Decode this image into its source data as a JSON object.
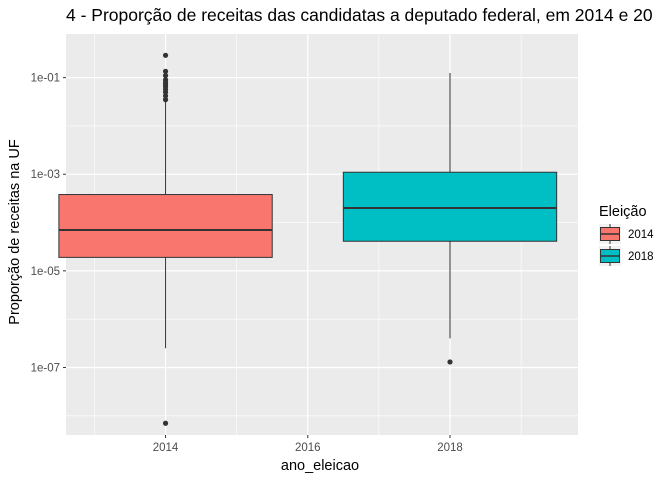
{
  "chart_data": {
    "type": "boxplot",
    "title": "4  - Proporção de receitas das candidatas a deputado federal, em 2014 e 20",
    "xlabel": "ano_eleicao",
    "ylabel": "Proporção de receitas na UF",
    "x_scale": "linear",
    "y_scale": "log10",
    "xlim": [
      2012.6,
      2019.8
    ],
    "ylim": [
      4e-09,
      0.8
    ],
    "x_ticks": [
      2014,
      2016,
      2018
    ],
    "x_tick_labels": [
      "2014",
      "2016",
      "2018"
    ],
    "y_ticks": [
      1e-07,
      1e-05,
      0.001,
      0.1
    ],
    "y_tick_labels": [
      "1e-07",
      "1e-05",
      "1e-03",
      "1e-01"
    ],
    "grid": true,
    "legend": {
      "title": "Eleição",
      "placement": "right",
      "entries": [
        "2014",
        "2018"
      ]
    },
    "series": [
      {
        "name": "2014",
        "x": 2014,
        "color": "#f8766d",
        "whisker_low": 2.5e-07,
        "q1": 1.9e-05,
        "median": 7e-05,
        "q3": 0.00038,
        "whisker_high": 0.032,
        "outliers": [
          7e-09,
          0.035,
          0.042,
          0.05,
          0.057,
          0.065,
          0.072,
          0.08,
          0.09,
          0.11,
          0.135,
          0.29
        ]
      },
      {
        "name": "2018",
        "x": 2018,
        "color": "#00bfc4",
        "whisker_low": 4e-07,
        "q1": 4.1e-05,
        "median": 0.0002,
        "q3": 0.0011,
        "whisker_high": 0.125,
        "outliers": [
          1.3e-07
        ]
      }
    ]
  }
}
